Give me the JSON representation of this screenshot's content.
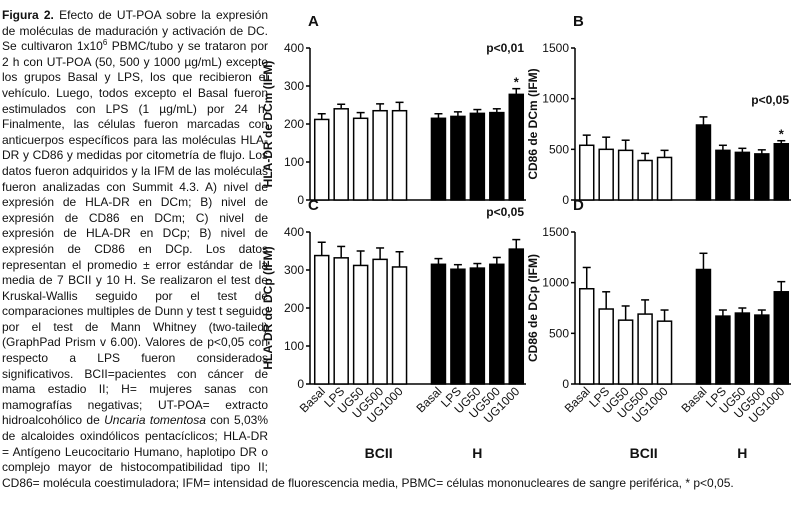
{
  "caption": {
    "label": "Figura 2.",
    "text1": " Efecto de UT-POA sobre la expresión de moléculas de maduración y activación de DC. Se cultivaron 1x10",
    "sup": "6",
    "text2": " PBMC/tubo y se trataron por 2 h con UT-POA (50, 500 y 1000 µg/mL) excepto los grupos Basal y LPS, los que recibieron el vehículo. Luego, todos excepto el Basal fueron estimulados con LPS (1 µg/mL) por 24 h. Finalmente, las células fueron marcadas con anticuerpos específicos para las moléculas HLA-DR y CD86 y medidas por citometría de flujo. Los datos fueron adquiridos y la IFM de las moléculas fueron analizadas con Summit 4.3. A) nivel de expresión de HLA-DR en DCm; B) nivel de expresión de CD86 en DCm; C) nivel de expresión de HLA-DR en DCp; B) nivel de expresión de CD86 en DCp. Los datos representan el promedio ± error estándar de la media de 7 BCII y 10 H. Se realizaron el test de Kruskal-Wallis seguido por el test de comparaciones multiples de Dunn y test t seguido por el test de Mann Whitney (two-tailed) (GraphPad Prism v 6.00). Valores de p<0,05 con respecto a LPS fueron considerados significativos. BCII=pacientes con cáncer de mama estadio II; H= mujeres sanas con mamografías negativas; UT-POA= extracto hidroalcohólico de ",
    "italic": "Uncaria tomentosa",
    "text3": " con 5,03% de alcaloides oxindólicos pentacíclicos; HLA-DR = Antígeno Leucocitario Humano, haplotipo DR o complejo mayor de histocompatibilidad tipo II; CD86= molécula coestimuladora; IFM= intensidad de fluorescencia media, PBMC= células mononucleares de sangre periférica, * p<0,05."
  },
  "chart_data": [
    {
      "type": "bar",
      "title": "A",
      "ylabel": "HLA-DR de DCm (IFM)",
      "ylim": [
        0,
        400
      ],
      "yticks": [
        0,
        100,
        200,
        300,
        400
      ],
      "groups": [
        {
          "color": "#ffffff",
          "values": [
            212,
            240,
            215,
            235,
            235
          ],
          "errors": [
            15,
            12,
            15,
            18,
            22
          ]
        },
        {
          "color": "#000000",
          "values": [
            215,
            220,
            228,
            230,
            278
          ],
          "errors": [
            12,
            12,
            10,
            10,
            15
          ]
        }
      ],
      "annotations": [
        "p<0,01",
        "*"
      ]
    },
    {
      "type": "bar",
      "title": "B",
      "ylabel": "CD86 de DCm (IFM)",
      "ylim": [
        0,
        1500
      ],
      "yticks": [
        0,
        500,
        1000,
        1500
      ],
      "groups": [
        {
          "color": "#ffffff",
          "values": [
            540,
            500,
            490,
            390,
            420
          ],
          "errors": [
            100,
            120,
            100,
            70,
            70
          ]
        },
        {
          "color": "#000000",
          "values": [
            740,
            490,
            470,
            455,
            555
          ],
          "errors": [
            80,
            50,
            40,
            40,
            30
          ]
        }
      ],
      "annotations": [
        "p<0,05",
        "*"
      ]
    },
    {
      "type": "bar",
      "title": "C",
      "ylabel": "HLA-DR de DCp (IFM)",
      "ylim": [
        0,
        400
      ],
      "yticks": [
        0,
        100,
        200,
        300,
        400
      ],
      "groups": [
        {
          "name": "BCII",
          "color": "#ffffff",
          "categories": [
            "Basal",
            "LPS",
            "UG50",
            "UG500",
            "UG1000"
          ],
          "values": [
            338,
            332,
            312,
            328,
            308
          ],
          "errors": [
            35,
            30,
            38,
            30,
            40
          ]
        },
        {
          "name": "H",
          "color": "#000000",
          "categories": [
            "Basal",
            "LPS",
            "UG50",
            "UG500",
            "UG1000"
          ],
          "values": [
            315,
            302,
            305,
            315,
            355
          ],
          "errors": [
            15,
            12,
            12,
            18,
            25
          ]
        }
      ],
      "annotations": [
        "p<0,05"
      ]
    },
    {
      "type": "bar",
      "title": "D",
      "ylabel": "CD86 de DCp (IFM)",
      "ylim": [
        0,
        1500
      ],
      "yticks": [
        0,
        500,
        1000,
        1500
      ],
      "groups": [
        {
          "name": "BCII",
          "color": "#ffffff",
          "categories": [
            "Basal",
            "LPS",
            "UG50",
            "UG500",
            "UG1000"
          ],
          "values": [
            940,
            740,
            630,
            690,
            620
          ],
          "errors": [
            210,
            170,
            140,
            140,
            110
          ]
        },
        {
          "name": "H",
          "color": "#000000",
          "categories": [
            "Basal",
            "LPS",
            "UG50",
            "UG500",
            "UG1000"
          ],
          "values": [
            1130,
            670,
            700,
            680,
            910
          ],
          "errors": [
            160,
            60,
            50,
            50,
            100
          ]
        }
      ],
      "annotations": []
    }
  ]
}
